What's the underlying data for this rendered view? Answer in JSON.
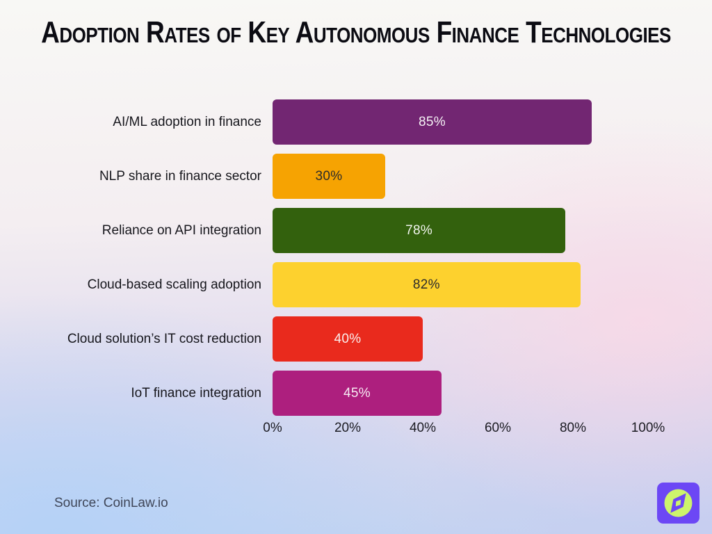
{
  "title": "Adoption Rates of Key Autonomous Finance Technologies",
  "source": "Source: CoinLaw.io",
  "logo": {
    "icon": "compass-icon",
    "bg_color": "#6C47F5",
    "fg_color": "#CDF46C"
  },
  "colors": {
    "title_text": "#0b0b12",
    "category_text": "#16161c",
    "axis_text": "#1b1b22",
    "source_text": "#3f4658"
  },
  "chart_data": {
    "type": "bar",
    "orientation": "horizontal",
    "title": "Adoption Rates of Key Autonomous Finance Technologies",
    "categories": [
      "AI/ML adoption in finance",
      "NLP share in finance sector",
      "Reliance on API integration",
      "Cloud-based scaling adoption",
      "Cloud solution’s IT cost reduction",
      "IoT finance integration"
    ],
    "values": [
      85,
      30,
      78,
      82,
      40,
      45
    ],
    "value_labels": [
      "85%",
      "30%",
      "78%",
      "82%",
      "40%",
      "45%"
    ],
    "bar_colors": [
      "#722672",
      "#F6A302",
      "#33610D",
      "#FDD12E",
      "#E92A1D",
      "#AD1F7E"
    ],
    "value_text_colors": [
      "#F5F2F5",
      "#2B2B2B",
      "#F2F5EF",
      "#2B2B2B",
      "#FBEFED",
      "#F7ECF3"
    ],
    "xlabel": "",
    "ylabel": "",
    "xlim": [
      0,
      100
    ],
    "x_ticks": [
      0,
      20,
      40,
      60,
      80,
      100
    ],
    "x_tick_labels": [
      "0%",
      "20%",
      "40%",
      "60%",
      "80%",
      "100%"
    ],
    "grid": false,
    "legend": false
  }
}
